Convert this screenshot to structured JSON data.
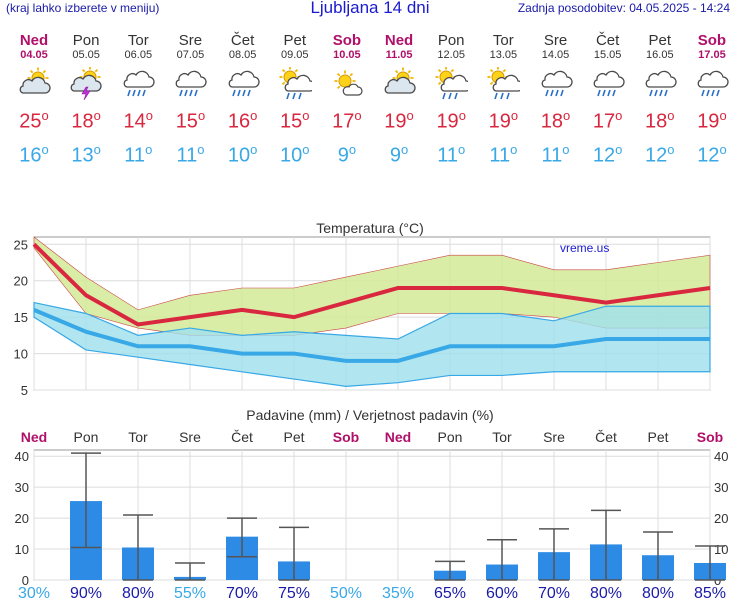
{
  "header": {
    "left_note": "(kraj lahko izberete v meniju)",
    "title": "Ljubljana 14 dni",
    "updated": "Zadnja posodobitev: 04.05.2025 - 14:24"
  },
  "days": [
    {
      "name": "Ned",
      "date": "04.05",
      "weekend": true,
      "icon": "partly-cloudy-icon",
      "tmax": "25",
      "tmin": "16"
    },
    {
      "name": "Pon",
      "date": "05.05",
      "weekend": false,
      "icon": "thunderstorm-sun-icon",
      "tmax": "18",
      "tmin": "13"
    },
    {
      "name": "Tor",
      "date": "06.05",
      "weekend": false,
      "icon": "rain-cloud-icon",
      "tmax": "14",
      "tmin": "11"
    },
    {
      "name": "Sre",
      "date": "07.05",
      "weekend": false,
      "icon": "rain-cloud-icon",
      "tmax": "15",
      "tmin": "11"
    },
    {
      "name": "Čet",
      "date": "08.05",
      "weekend": false,
      "icon": "rain-cloud-icon",
      "tmax": "16",
      "tmin": "10"
    },
    {
      "name": "Pet",
      "date": "09.05",
      "weekend": false,
      "icon": "sun-rain-icon",
      "tmax": "15",
      "tmin": "10"
    },
    {
      "name": "Sob",
      "date": "10.05",
      "weekend": true,
      "icon": "sun-cloud-icon",
      "tmax": "17",
      "tmin": "9"
    },
    {
      "name": "Ned",
      "date": "11.05",
      "weekend": true,
      "icon": "partly-cloudy-icon",
      "tmax": "19",
      "tmin": "9"
    },
    {
      "name": "Pon",
      "date": "12.05",
      "weekend": false,
      "icon": "sun-rain-icon",
      "tmax": "19",
      "tmin": "11"
    },
    {
      "name": "Tor",
      "date": "13.05",
      "weekend": false,
      "icon": "sun-rain-icon",
      "tmax": "19",
      "tmin": "11"
    },
    {
      "name": "Sre",
      "date": "14.05",
      "weekend": false,
      "icon": "rain-cloud-icon",
      "tmax": "18",
      "tmin": "11"
    },
    {
      "name": "Čet",
      "date": "15.05",
      "weekend": false,
      "icon": "rain-cloud-icon",
      "tmax": "17",
      "tmin": "12"
    },
    {
      "name": "Pet",
      "date": "16.05",
      "weekend": false,
      "icon": "rain-cloud-icon",
      "tmax": "18",
      "tmin": "12"
    },
    {
      "name": "Sob",
      "date": "17.05",
      "weekend": true,
      "icon": "rain-cloud-icon",
      "tmax": "19",
      "tmin": "12"
    }
  ],
  "degree_symbol": "o",
  "colors": {
    "max": "#d8273e",
    "min": "#38a8e6",
    "max_band": "#d2ea97",
    "min_band": "#9ee0ee",
    "bar": "#2d8be6",
    "weekend": "#b0106a",
    "pct_high": "#1a1aa8",
    "pct_low": "#38a8e6"
  },
  "chart_data": [
    {
      "type": "line",
      "title": "Temperatura (°C)",
      "watermark": "vreme.us",
      "ylim": [
        5,
        26
      ],
      "yticks": [
        5,
        10,
        15,
        20,
        25
      ],
      "series": [
        {
          "name": "max",
          "values": [
            25,
            18,
            14,
            15,
            16,
            15,
            17,
            19,
            19,
            19,
            18,
            17,
            18,
            19
          ]
        },
        {
          "name": "min",
          "values": [
            16,
            13,
            11,
            11,
            10,
            10,
            9,
            9,
            11,
            11,
            11,
            12,
            12,
            12
          ]
        }
      ],
      "max_band": {
        "low": [
          24.5,
          15.5,
          13.5,
          12.5,
          12.5,
          12.5,
          13.5,
          15.5,
          15.5,
          15.5,
          15.0,
          13.5,
          13.5,
          13.5
        ],
        "high": [
          26,
          20.5,
          16,
          18,
          19,
          19,
          20.5,
          22,
          23.5,
          23.5,
          21.5,
          21.5,
          22.5,
          23.5
        ]
      },
      "min_band": {
        "low": [
          15,
          10.5,
          9.5,
          8.5,
          7.5,
          6.5,
          5.5,
          6,
          7,
          7,
          7.5,
          7.5,
          7.5,
          7.5
        ],
        "high": [
          17,
          15.5,
          12.5,
          13.5,
          12.5,
          13,
          12.5,
          12,
          15.5,
          15.5,
          14.5,
          16.5,
          16.5,
          16.5
        ]
      }
    },
    {
      "type": "bar",
      "title": "Padavine (mm) / Verjetnost padavin (%)",
      "categories": [
        "Ned",
        "Pon",
        "Tor",
        "Sre",
        "Čet",
        "Pet",
        "Sob",
        "Ned",
        "Pon",
        "Tor",
        "Sre",
        "Čet",
        "Pet",
        "Sob"
      ],
      "weekend": [
        true,
        false,
        false,
        false,
        false,
        false,
        true,
        true,
        false,
        false,
        false,
        false,
        false,
        true
      ],
      "ylim": [
        0,
        42
      ],
      "yticks": [
        0,
        10,
        20,
        30,
        40
      ],
      "values": [
        0,
        25.5,
        10.5,
        1,
        14,
        6,
        0,
        0,
        3,
        5,
        9,
        11.5,
        8,
        5.5
      ],
      "range_low": [
        null,
        10.5,
        0,
        0,
        7.5,
        0,
        null,
        null,
        0,
        0,
        0,
        0,
        0,
        0
      ],
      "range_high": [
        null,
        41,
        21,
        5.5,
        20,
        17,
        null,
        null,
        6,
        13,
        16.5,
        22.5,
        15.5,
        11
      ],
      "probability": [
        "30%",
        "90%",
        "80%",
        "55%",
        "70%",
        "75%",
        "50%",
        "35%",
        "65%",
        "60%",
        "70%",
        "80%",
        "80%",
        "85%"
      ]
    }
  ]
}
